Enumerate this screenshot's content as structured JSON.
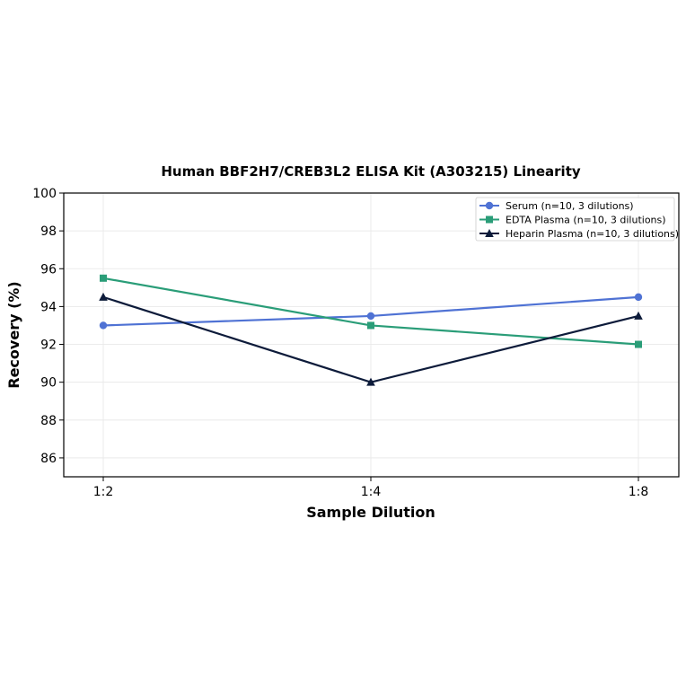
{
  "chart_data": {
    "type": "line",
    "title": "Human BBF2H7/CREB3L2 ELISA Kit (A303215) Linearity",
    "xlabel": "Sample Dilution",
    "ylabel": "Recovery (%)",
    "categories": [
      "1:2",
      "1:4",
      "1:8"
    ],
    "ylim": [
      85,
      100
    ],
    "yticks": [
      86,
      88,
      90,
      92,
      94,
      96,
      98,
      100
    ],
    "grid": true,
    "legend_position": "top-right",
    "series": [
      {
        "name": "Serum (n=10, 3 dilutions)",
        "values": [
          93.0,
          93.5,
          94.5
        ],
        "color": "#4f72d4",
        "marker": "circle"
      },
      {
        "name": "EDTA Plasma (n=10, 3 dilutions)",
        "values": [
          95.5,
          93.0,
          92.0
        ],
        "color": "#2a9d78",
        "marker": "square"
      },
      {
        "name": "Heparin Plasma (n=10, 3 dilutions)",
        "values": [
          94.5,
          90.0,
          93.5
        ],
        "color": "#0d1b3a",
        "marker": "triangle"
      }
    ]
  }
}
